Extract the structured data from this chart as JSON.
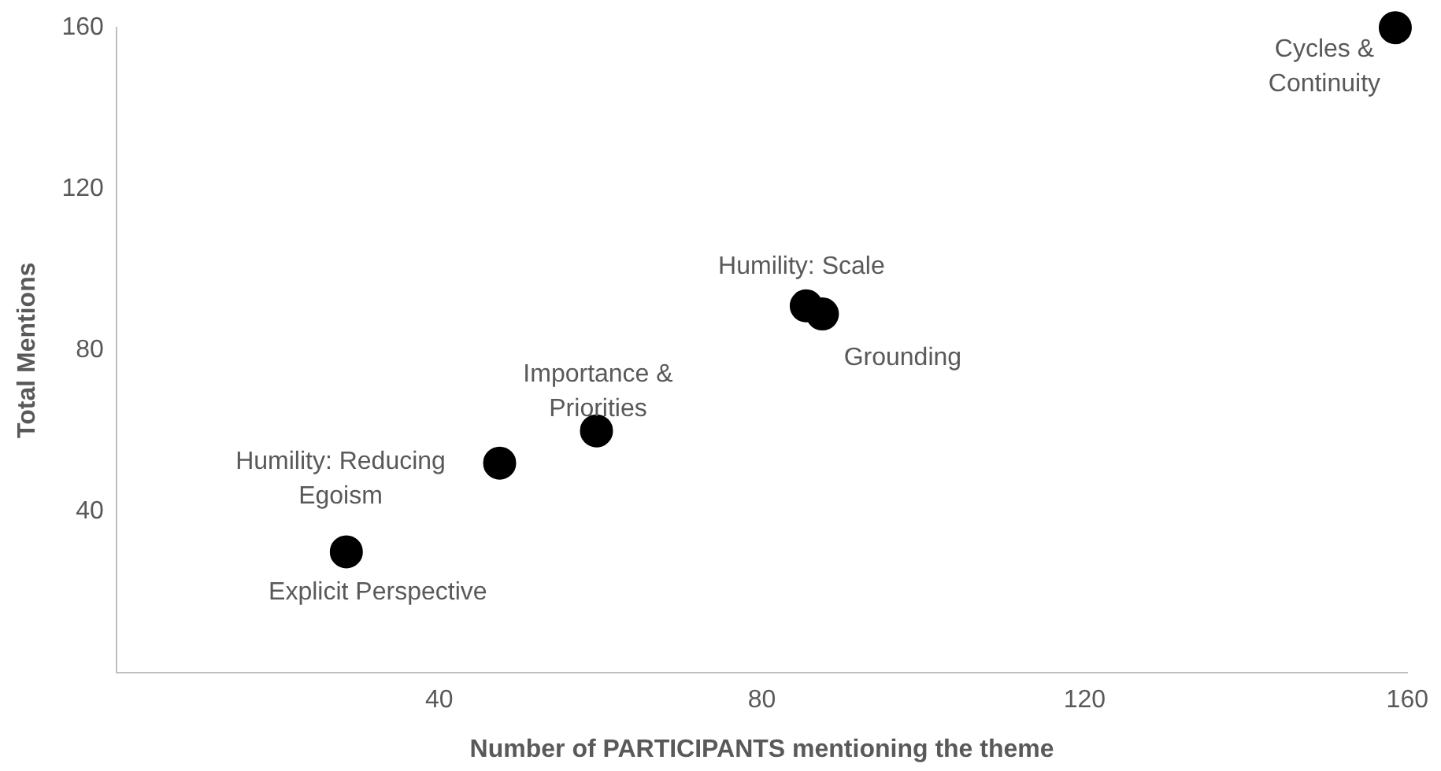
{
  "chart_data": {
    "type": "scatter",
    "xlabel": "Number of PARTICIPANTS mentioning the theme",
    "ylabel": "Total Mentions",
    "x": [
      28.5,
      47.5,
      59.5,
      85.5,
      87.5,
      158.5
    ],
    "values": [
      30,
      52,
      60,
      91,
      89,
      160
    ],
    "color": "#000000",
    "marker": "circle",
    "xlim": [
      0,
      160
    ],
    "xticks": [
      40,
      80,
      120,
      160
    ],
    "ylim": [
      0,
      160
    ],
    "yticks": [
      40,
      80,
      120,
      160
    ],
    "grid": false,
    "annotations": [
      {
        "text": "Explicit Perspective",
        "x": 28.5,
        "y": 30
      },
      {
        "text": "Humility: Reducing Egoism",
        "x": 47.5,
        "y": 52
      },
      {
        "text": "Importance & Priorities",
        "x": 59.5,
        "y": 60
      },
      {
        "text": "Humility: Scale",
        "x": 85.5,
        "y": 91
      },
      {
        "text": "Grounding",
        "x": 87.5,
        "y": 89
      },
      {
        "text": "Cycles & Continuity",
        "x": 158.5,
        "y": 160
      }
    ]
  }
}
